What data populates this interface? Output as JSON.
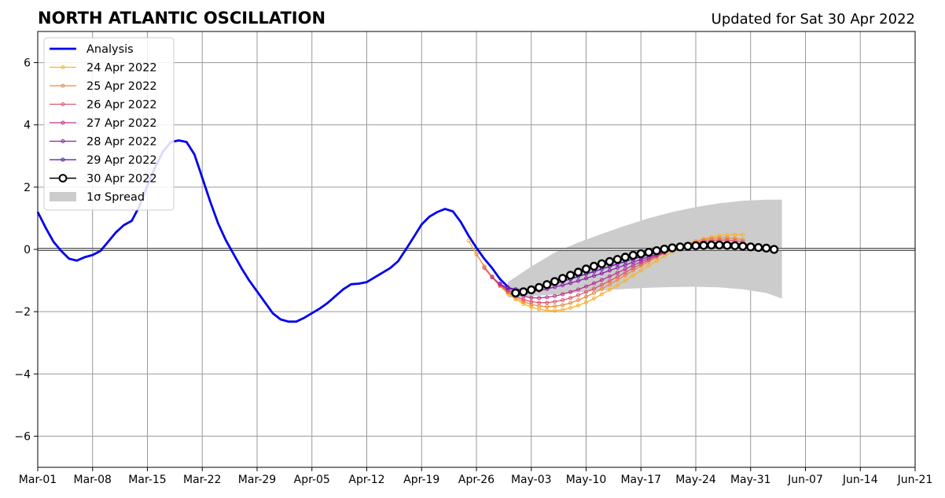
{
  "chart_data": {
    "type": "line",
    "title": "NORTH ATLANTIC OSCILLATION",
    "subtitle": "Updated for Sat 30 Apr 2022",
    "xlabel": "",
    "ylabel": "",
    "x_axis": {
      "type": "date",
      "range": [
        "2022-03-01",
        "2022-06-21"
      ],
      "ticks": [
        {
          "date": "2022-03-01",
          "label": "Mar-01"
        },
        {
          "date": "2022-03-08",
          "label": "Mar-08"
        },
        {
          "date": "2022-03-15",
          "label": "Mar-15"
        },
        {
          "date": "2022-03-22",
          "label": "Mar-22"
        },
        {
          "date": "2022-03-29",
          "label": "Mar-29"
        },
        {
          "date": "2022-04-05",
          "label": "Apr-05"
        },
        {
          "date": "2022-04-12",
          "label": "Apr-12"
        },
        {
          "date": "2022-04-19",
          "label": "Apr-19"
        },
        {
          "date": "2022-04-26",
          "label": "Apr-26"
        },
        {
          "date": "2022-05-03",
          "label": "May-03"
        },
        {
          "date": "2022-05-10",
          "label": "May-10"
        },
        {
          "date": "2022-05-17",
          "label": "May-17"
        },
        {
          "date": "2022-05-24",
          "label": "May-24"
        },
        {
          "date": "2022-05-31",
          "label": "May-31"
        },
        {
          "date": "2022-06-07",
          "label": "Jun-07"
        },
        {
          "date": "2022-06-14",
          "label": "Jun-14"
        },
        {
          "date": "2022-06-21",
          "label": "Jun-21"
        }
      ]
    },
    "y_axis": {
      "range": [
        -7,
        7
      ],
      "ticks": [
        {
          "value": -6,
          "label": "−6"
        },
        {
          "value": -4,
          "label": "−4"
        },
        {
          "value": -2,
          "label": "−2"
        },
        {
          "value": 0,
          "label": "0"
        },
        {
          "value": 2,
          "label": "2"
        },
        {
          "value": 4,
          "label": "4"
        },
        {
          "value": 6,
          "label": "6"
        }
      ]
    },
    "grid": true,
    "legend_position": "top-left",
    "zero_line": true,
    "analysis": {
      "name": "Analysis",
      "color": "#0000ee",
      "x": [
        "2022-03-01",
        "2022-03-02",
        "2022-03-03",
        "2022-03-04",
        "2022-03-05",
        "2022-03-06",
        "2022-03-07",
        "2022-03-08",
        "2022-03-09",
        "2022-03-10",
        "2022-03-11",
        "2022-03-12",
        "2022-03-13",
        "2022-03-14",
        "2022-03-15",
        "2022-03-16",
        "2022-03-17",
        "2022-03-18",
        "2022-03-19",
        "2022-03-20",
        "2022-03-21",
        "2022-03-22",
        "2022-03-23",
        "2022-03-24",
        "2022-03-25",
        "2022-03-26",
        "2022-03-27",
        "2022-03-28",
        "2022-03-29",
        "2022-03-30",
        "2022-03-31",
        "2022-04-01",
        "2022-04-02",
        "2022-04-03",
        "2022-04-04",
        "2022-04-05",
        "2022-04-06",
        "2022-04-07",
        "2022-04-08",
        "2022-04-09",
        "2022-04-10",
        "2022-04-11",
        "2022-04-12",
        "2022-04-13",
        "2022-04-14",
        "2022-04-15",
        "2022-04-16",
        "2022-04-17",
        "2022-04-18",
        "2022-04-19",
        "2022-04-20",
        "2022-04-21",
        "2022-04-22",
        "2022-04-23",
        "2022-04-24",
        "2022-04-25",
        "2022-04-26",
        "2022-04-27",
        "2022-04-28",
        "2022-04-29",
        "2022-04-30"
      ],
      "y": [
        1.2,
        0.7,
        0.25,
        -0.05,
        -0.3,
        -0.36,
        -0.25,
        -0.18,
        -0.05,
        0.25,
        0.55,
        0.78,
        0.92,
        1.4,
        2.05,
        2.65,
        3.15,
        3.45,
        3.5,
        3.45,
        3.05,
        2.3,
        1.55,
        0.85,
        0.3,
        -0.15,
        -0.6,
        -1.0,
        -1.35,
        -1.7,
        -2.05,
        -2.25,
        -2.32,
        -2.32,
        -2.2,
        -2.05,
        -1.9,
        -1.72,
        -1.5,
        -1.28,
        -1.12,
        -1.1,
        -1.05,
        -0.9,
        -0.75,
        -0.6,
        -0.38,
        0.0,
        0.4,
        0.8,
        1.05,
        1.2,
        1.3,
        1.22,
        0.88,
        0.44,
        0.05,
        -0.3,
        -0.6,
        -0.95,
        -1.2
      ]
    },
    "spread": {
      "name": "1σ Spread",
      "color": "#cccccc",
      "x": [
        "2022-04-30",
        "2022-05-03",
        "2022-05-06",
        "2022-05-09",
        "2022-05-12",
        "2022-05-15",
        "2022-05-18",
        "2022-05-21",
        "2022-05-24",
        "2022-05-27",
        "2022-05-30",
        "2022-06-02",
        "2022-06-04"
      ],
      "upper": [
        -1.05,
        -0.55,
        -0.1,
        0.22,
        0.5,
        0.76,
        1.0,
        1.2,
        1.36,
        1.48,
        1.56,
        1.6,
        1.6
      ],
      "lower": [
        -1.55,
        -1.5,
        -1.45,
        -1.38,
        -1.32,
        -1.27,
        -1.23,
        -1.21,
        -1.2,
        -1.22,
        -1.28,
        -1.4,
        -1.58
      ]
    },
    "forecasts": [
      {
        "name": "24 Apr 2022",
        "color": "#f7b32b",
        "start": "2022-04-25",
        "y": [
          0.28,
          -0.15,
          -0.55,
          -0.9,
          -1.18,
          -1.42,
          -1.6,
          -1.75,
          -1.85,
          -1.92,
          -1.96,
          -1.97,
          -1.94,
          -1.88,
          -1.8,
          -1.7,
          -1.58,
          -1.44,
          -1.3,
          -1.15,
          -1.0,
          -0.84,
          -0.68,
          -0.52,
          -0.37,
          -0.22,
          -0.08,
          0.05,
          0.16,
          0.26,
          0.34,
          0.4,
          0.44,
          0.46,
          0.47,
          0.47
        ]
      },
      {
        "name": "25 Apr 2022",
        "color": "#f08a3c",
        "start": "2022-04-26",
        "y": [
          -0.15,
          -0.55,
          -0.88,
          -1.16,
          -1.38,
          -1.55,
          -1.68,
          -1.77,
          -1.82,
          -1.84,
          -1.83,
          -1.79,
          -1.72,
          -1.63,
          -1.52,
          -1.4,
          -1.27,
          -1.13,
          -0.98,
          -0.83,
          -0.68,
          -0.53,
          -0.39,
          -0.25,
          -0.12,
          0.0,
          0.1,
          0.19,
          0.26,
          0.31,
          0.35,
          0.37,
          0.37,
          0.35,
          0.31
        ]
      },
      {
        "name": "26 Apr 2022",
        "color": "#e0566d",
        "start": "2022-04-27",
        "y": [
          -0.6,
          -0.9,
          -1.15,
          -1.35,
          -1.5,
          -1.61,
          -1.68,
          -1.71,
          -1.71,
          -1.68,
          -1.63,
          -1.56,
          -1.47,
          -1.37,
          -1.26,
          -1.14,
          -1.01,
          -0.88,
          -0.74,
          -0.6,
          -0.47,
          -0.34,
          -0.22,
          -0.11,
          -0.01,
          0.08,
          0.15,
          0.21,
          0.26,
          0.29,
          0.3,
          0.3,
          0.28,
          0.25
        ]
      },
      {
        "name": "27 Apr 2022",
        "color": "#b8348f",
        "start": "2022-04-28",
        "y": [
          -0.88,
          -1.12,
          -1.3,
          -1.43,
          -1.51,
          -1.55,
          -1.56,
          -1.54,
          -1.5,
          -1.44,
          -1.37,
          -1.29,
          -1.19,
          -1.09,
          -0.98,
          -0.87,
          -0.75,
          -0.63,
          -0.51,
          -0.4,
          -0.29,
          -0.19,
          -0.1,
          -0.02,
          0.05,
          0.11,
          0.16,
          0.19,
          0.21,
          0.22,
          0.21,
          0.19,
          0.16
        ]
      },
      {
        "name": "28 Apr 2022",
        "color": "#8a1fa8",
        "start": "2022-04-29",
        "y": [
          -1.1,
          -1.25,
          -1.33,
          -1.36,
          -1.35,
          -1.32,
          -1.27,
          -1.21,
          -1.15,
          -1.08,
          -1.01,
          -0.93,
          -0.85,
          -0.77,
          -0.68,
          -0.59,
          -0.5,
          -0.41,
          -0.32,
          -0.24,
          -0.16,
          -0.09,
          -0.03,
          0.03,
          0.08,
          0.12,
          0.15,
          0.16,
          0.17,
          0.16,
          0.15,
          0.13
        ]
      },
      {
        "name": "29 Apr 2022",
        "color": "#5c0fa0",
        "start": "2022-04-30",
        "y": [
          -1.22,
          -1.28,
          -1.3,
          -1.28,
          -1.24,
          -1.18,
          -1.11,
          -1.03,
          -0.95,
          -0.87,
          -0.79,
          -0.71,
          -0.63,
          -0.55,
          -0.47,
          -0.39,
          -0.31,
          -0.24,
          -0.17,
          -0.11,
          -0.05,
          0.0,
          0.04,
          0.08,
          0.1,
          0.12,
          0.13,
          0.13,
          0.12,
          0.1,
          0.08
        ]
      },
      {
        "name": "30 Apr 2022",
        "color": "#000000",
        "start": "2022-05-01",
        "y": [
          -1.4,
          -1.36,
          -1.3,
          -1.22,
          -1.13,
          -1.03,
          -0.93,
          -0.83,
          -0.73,
          -0.63,
          -0.54,
          -0.46,
          -0.39,
          -0.32,
          -0.25,
          -0.19,
          -0.14,
          -0.09,
          -0.04,
          0.01,
          0.05,
          0.08,
          0.1,
          0.12,
          0.13,
          0.14,
          0.14,
          0.13,
          0.12,
          0.1,
          0.08,
          0.06,
          0.04,
          0.0
        ]
      }
    ]
  }
}
